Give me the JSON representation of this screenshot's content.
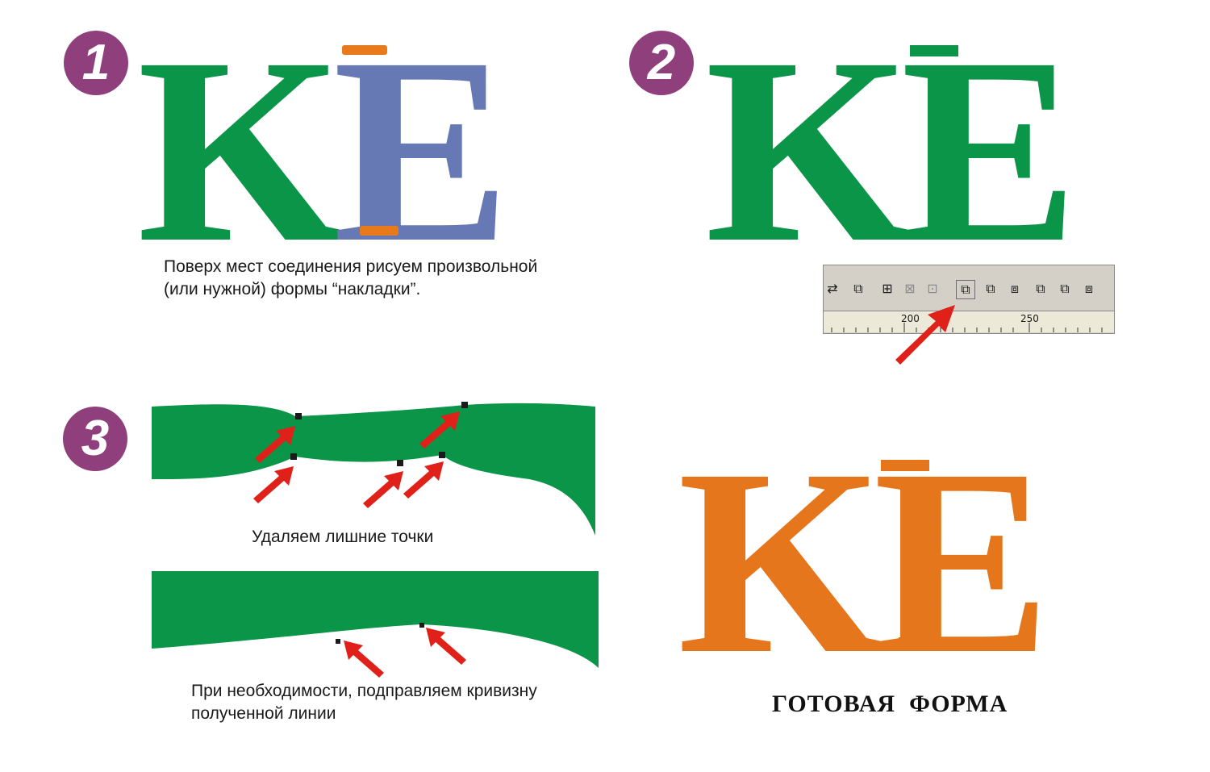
{
  "steps": {
    "badge1": "1",
    "badge2": "2",
    "badge3": "3"
  },
  "letters": {
    "k": "K",
    "e": "E"
  },
  "captions": {
    "step1_line1": "Поверх мест соединения рисуем произвольной",
    "step1_line2": "(или нужной) формы “накладки”.",
    "step3_top": "Удаляем лишние точки",
    "step3_bottom_line1": "При необходимости, подправляем кривизну",
    "step3_bottom_line2": "полученной линии"
  },
  "final": {
    "title": "ГОТОВАЯ  ФОРМА"
  },
  "toolbar": {
    "ruler_label_left": "200",
    "ruler_label_right": "250",
    "buttons": [
      "weld-icon",
      "trim-icon",
      "intersect-icon",
      "simplify-icon",
      "front-minus-back-icon",
      "back-minus-front-icon"
    ]
  },
  "colors": {
    "green": "#0a9548",
    "blue": "#6679b5",
    "orange": "#e5761b",
    "overlay_orange": "#e97a1c",
    "badge_purple": "#8e3f7c",
    "arrow_red": "#e0211a"
  }
}
